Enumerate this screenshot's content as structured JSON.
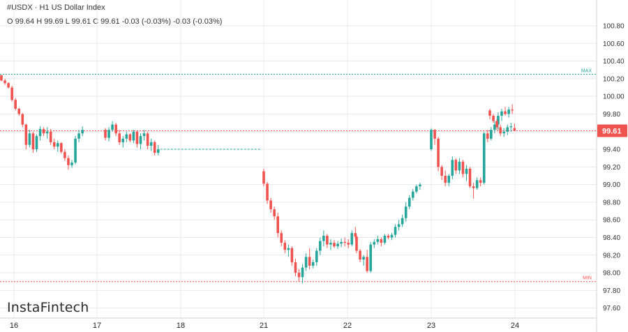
{
  "header": {
    "symbol": "#USDX",
    "separator": "·",
    "timeframe": "H1",
    "name": "US Dollar Index",
    "ohlc": "O 99.64 H 99.69 L 99.61 C 99.61 -0.03 (-0.03%) -0.03 (-0.03%)"
  },
  "logo": "InstaFintech",
  "colors": {
    "up": "#26a69a",
    "down": "#ef5350",
    "price_line": "#ef5350",
    "max_line": "#26a69a",
    "min_line": "#ef5350",
    "grid": "#e9e9e9"
  },
  "chart_data": {
    "type": "candlestick",
    "title": "",
    "xlabel": "",
    "ylabel": "",
    "grid": true,
    "ylim": [
      97.55,
      100.95
    ],
    "y_ticks": [
      "100.80",
      "100.60",
      "100.40",
      "100.20",
      "100.00",
      "99.80",
      "99.60",
      "99.40",
      "99.20",
      "99.00",
      "98.80",
      "98.60",
      "98.40",
      "98.20",
      "98.00",
      "97.80",
      "97.60"
    ],
    "x_ticks": [
      "16",
      "17",
      "18",
      "21",
      "22",
      "23",
      "24"
    ],
    "last_price": "99.61",
    "max_label": "MAX",
    "max_value": 100.25,
    "min_label": "MIN",
    "min_value": 97.9,
    "weekend_gap_level": 99.4,
    "series": [
      {
        "day": "16",
        "candles": [
          [
            100.24,
            100.24,
            100.17,
            100.18
          ],
          [
            100.18,
            100.2,
            100.13,
            100.15
          ],
          [
            100.15,
            100.16,
            100.09,
            100.1
          ],
          [
            100.1,
            100.12,
            99.94,
            99.96
          ],
          [
            99.96,
            99.98,
            99.84,
            99.86
          ],
          [
            99.86,
            99.87,
            99.78,
            99.8
          ],
          [
            99.8,
            99.81,
            99.65,
            99.68
          ],
          [
            99.68,
            99.69,
            99.4,
            99.45
          ],
          [
            99.45,
            99.62,
            99.42,
            99.58
          ],
          [
            99.58,
            99.6,
            99.36,
            99.4
          ],
          [
            99.4,
            99.57,
            99.37,
            99.55
          ],
          [
            99.55,
            99.66,
            99.5,
            99.63
          ],
          [
            99.63,
            99.65,
            99.55,
            99.58
          ],
          [
            99.58,
            99.65,
            99.52,
            99.6
          ],
          [
            99.6,
            99.63,
            99.45,
            99.48
          ],
          [
            99.48,
            99.52,
            99.4,
            99.43
          ],
          [
            99.43,
            99.5,
            99.37,
            99.47
          ],
          [
            99.47,
            99.48,
            99.35,
            99.37
          ],
          [
            99.37,
            99.4,
            99.27,
            99.3
          ],
          [
            99.3,
            99.33,
            99.17,
            99.22
          ],
          [
            99.22,
            99.28,
            99.19,
            99.25
          ],
          [
            99.25,
            99.55,
            99.23,
            99.52
          ],
          [
            99.52,
            99.62,
            99.48,
            99.58
          ],
          [
            99.58,
            99.66,
            99.55,
            99.62
          ]
        ]
      },
      {
        "day": "17",
        "candles": [
          [
            99.62,
            99.64,
            99.5,
            99.53
          ],
          [
            99.53,
            99.65,
            99.49,
            99.62
          ],
          [
            99.62,
            99.72,
            99.6,
            99.68
          ],
          [
            99.68,
            99.7,
            99.55,
            99.58
          ],
          [
            99.58,
            99.62,
            99.45,
            99.48
          ],
          [
            99.48,
            99.55,
            99.42,
            99.52
          ],
          [
            99.52,
            99.6,
            99.48,
            99.57
          ],
          [
            99.57,
            99.58,
            99.48,
            99.5
          ],
          [
            99.5,
            99.62,
            99.47,
            99.6
          ],
          [
            99.6,
            99.61,
            99.42,
            99.46
          ],
          [
            99.46,
            99.58,
            99.4,
            99.55
          ],
          [
            99.55,
            99.62,
            99.5,
            99.58
          ],
          [
            99.58,
            99.6,
            99.4,
            99.44
          ],
          [
            99.44,
            99.52,
            99.38,
            99.48
          ],
          [
            99.48,
            99.5,
            99.33,
            99.36
          ],
          [
            99.36,
            99.45,
            99.33,
            99.4
          ]
        ]
      },
      {
        "day": "21",
        "candles": [
          [
            99.15,
            99.18,
            98.98,
            99.01
          ],
          [
            99.01,
            99.03,
            98.78,
            98.82
          ],
          [
            98.82,
            98.85,
            98.68,
            98.72
          ],
          [
            98.72,
            98.75,
            98.6,
            98.64
          ],
          [
            98.64,
            98.68,
            98.4,
            98.45
          ],
          [
            98.45,
            98.48,
            98.3,
            98.34
          ],
          [
            98.34,
            98.37,
            98.22,
            98.26
          ],
          [
            98.26,
            98.32,
            98.18,
            98.28
          ],
          [
            98.28,
            98.3,
            98.08,
            98.12
          ],
          [
            98.12,
            98.16,
            97.96,
            98.0
          ],
          [
            98.0,
            98.04,
            97.9,
            97.95
          ],
          [
            97.95,
            98.1,
            97.88,
            98.06
          ],
          [
            98.06,
            98.22,
            98.02,
            98.18
          ],
          [
            98.18,
            98.28,
            98.04,
            98.08
          ],
          [
            98.08,
            98.15,
            98.05,
            98.12
          ],
          [
            98.12,
            98.28,
            98.08,
            98.25
          ],
          [
            98.25,
            98.4,
            98.2,
            98.36
          ],
          [
            98.36,
            98.48,
            98.3,
            98.42
          ],
          [
            98.42,
            98.44,
            98.28,
            98.32
          ],
          [
            98.32,
            98.38,
            98.26,
            98.34
          ],
          [
            98.34,
            98.37,
            98.28,
            98.3
          ],
          [
            98.3,
            98.36,
            98.27,
            98.33
          ],
          [
            98.33,
            98.39,
            98.29,
            98.35
          ],
          [
            98.35,
            98.4,
            98.3,
            98.34
          ],
          [
            98.34,
            98.38,
            98.28,
            98.32
          ],
          [
            98.32,
            98.48,
            98.3,
            98.45
          ],
          [
            98.45,
            98.52,
            98.38,
            98.41
          ]
        ]
      },
      {
        "day": "22",
        "candles": [
          [
            98.41,
            98.43,
            98.22,
            98.25
          ],
          [
            98.25,
            98.27,
            98.12,
            98.15
          ],
          [
            98.15,
            98.2,
            98.08,
            98.18
          ],
          [
            98.18,
            98.26,
            98.0,
            98.02
          ],
          [
            98.02,
            98.35,
            98.0,
            98.32
          ],
          [
            98.32,
            98.38,
            98.28,
            98.35
          ],
          [
            98.35,
            98.42,
            98.32,
            98.38
          ],
          [
            98.38,
            98.4,
            98.3,
            98.34
          ],
          [
            98.34,
            98.44,
            98.32,
            98.42
          ],
          [
            98.42,
            98.44,
            98.38,
            98.4
          ],
          [
            98.4,
            98.45,
            98.37,
            98.43
          ],
          [
            98.43,
            98.55,
            98.4,
            98.52
          ],
          [
            98.52,
            98.6,
            98.48,
            98.55
          ],
          [
            98.55,
            98.66,
            98.52,
            98.62
          ],
          [
            98.62,
            98.8,
            98.58,
            98.75
          ],
          [
            98.75,
            98.88,
            98.72,
            98.85
          ],
          [
            98.85,
            98.95,
            98.82,
            98.92
          ],
          [
            98.92,
            99.0,
            98.9,
            98.98
          ],
          [
            98.98,
            99.02,
            98.94,
            99.0
          ]
        ]
      },
      {
        "day": "23",
        "candles": [
          [
            99.4,
            99.64,
            99.38,
            99.62
          ],
          [
            99.62,
            99.63,
            99.45,
            99.52
          ],
          [
            99.52,
            99.54,
            99.15,
            99.2
          ],
          [
            99.2,
            99.22,
            99.05,
            99.1
          ],
          [
            99.1,
            99.16,
            98.98,
            99.02
          ],
          [
            99.02,
            99.12,
            98.98,
            99.1
          ],
          [
            99.1,
            99.32,
            99.06,
            99.28
          ],
          [
            99.28,
            99.3,
            99.12,
            99.16
          ],
          [
            99.16,
            99.3,
            99.12,
            99.26
          ],
          [
            99.26,
            99.28,
            99.08,
            99.12
          ],
          [
            99.12,
            99.22,
            99.04,
            99.18
          ],
          [
            99.18,
            99.2,
            98.96,
            98.98
          ],
          [
            98.98,
            99.02,
            98.84,
            98.96
          ],
          [
            98.96,
            99.08,
            98.94,
            99.05
          ],
          [
            99.05,
            99.08,
            98.98,
            99.02
          ],
          [
            99.02,
            99.6,
            99.0,
            99.58
          ],
          [
            99.58,
            99.62,
            99.48,
            99.52
          ],
          [
            99.52,
            99.65,
            99.5,
            99.62
          ],
          [
            99.62,
            99.72,
            99.58,
            99.68
          ],
          [
            99.68,
            99.82,
            99.62,
            99.78
          ],
          [
            99.78,
            99.86,
            99.72,
            99.83
          ],
          [
            99.83,
            99.88,
            99.78,
            99.8
          ],
          [
            99.8,
            99.88,
            99.76,
            99.85
          ],
          [
            99.85,
            99.91,
            99.8,
            99.84
          ]
        ]
      },
      {
        "day": "24",
        "candles": [
          [
            99.84,
            99.86,
            99.74,
            99.78
          ],
          [
            99.78,
            99.8,
            99.7,
            99.72
          ],
          [
            99.72,
            99.74,
            99.62,
            99.65
          ],
          [
            99.65,
            99.68,
            99.55,
            99.58
          ],
          [
            99.58,
            99.64,
            99.54,
            99.6
          ],
          [
            99.6,
            99.68,
            99.56,
            99.65
          ],
          [
            99.65,
            99.7,
            99.6,
            99.66
          ],
          [
            99.64,
            99.69,
            99.61,
            99.61
          ]
        ]
      }
    ]
  }
}
